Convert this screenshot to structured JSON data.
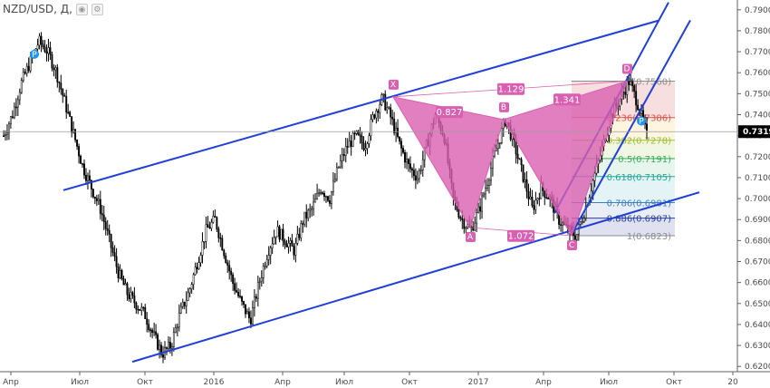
{
  "header": {
    "title": "NZD/USD, Д,",
    "icons": [
      "eye-icon",
      "settings-icon"
    ]
  },
  "chart_data": {
    "type": "candlestick",
    "symbol": "NZD/USD",
    "timeframe": "Д",
    "ylim": [
      0.6175,
      0.7925
    ],
    "yticks": [
      "0.7900",
      "0.7800",
      "0.7700",
      "0.7600",
      "0.7500",
      "0.7400",
      "0.7300",
      "0.7200",
      "0.7100",
      "0.7000",
      "0.6900",
      "0.6800",
      "0.6700",
      "0.6600",
      "0.6500",
      "0.6400",
      "0.6300",
      "0.6200"
    ],
    "xticks": [
      "Апр",
      "Июл",
      "Окт",
      "2016",
      "Апр",
      "Июл",
      "Окт",
      "2017",
      "Апр",
      "Июл",
      "Окт",
      "20"
    ],
    "current_price": "0.7319",
    "price_path": [
      0.73,
      0.74,
      0.755,
      0.765,
      0.775,
      0.77,
      0.76,
      0.745,
      0.73,
      0.715,
      0.705,
      0.695,
      0.68,
      0.665,
      0.655,
      0.65,
      0.645,
      0.635,
      0.626,
      0.63,
      0.645,
      0.655,
      0.67,
      0.685,
      0.69,
      0.675,
      0.66,
      0.65,
      0.642,
      0.66,
      0.675,
      0.685,
      0.68,
      0.675,
      0.69,
      0.695,
      0.705,
      0.7,
      0.715,
      0.725,
      0.73,
      0.725,
      0.74,
      0.748,
      0.738,
      0.725,
      0.715,
      0.71,
      0.725,
      0.74,
      0.73,
      0.7,
      0.69,
      0.685,
      0.695,
      0.71,
      0.725,
      0.738,
      0.725,
      0.71,
      0.695,
      0.705,
      0.7,
      0.69,
      0.685,
      0.6823,
      0.695,
      0.71,
      0.725,
      0.74,
      0.748,
      0.756,
      0.745,
      0.73
    ],
    "harmonic_pattern": {
      "points": [
        {
          "label": "X",
          "price": 0.7485
        },
        {
          "label": "A",
          "price": 0.6862
        },
        {
          "label": "B",
          "price": 0.7377
        },
        {
          "label": "C",
          "price": 0.6823
        },
        {
          "label": "D",
          "price": 0.756
        }
      ],
      "ratios": [
        "0.827",
        "1.072",
        "1.129",
        "1.341"
      ]
    },
    "fib_levels": [
      {
        "label": "0(0.7560)",
        "value": 0.756,
        "color": "#8c8c8c",
        "fill": "#f7d9d9"
      },
      {
        "label": "0.236(0.7386)",
        "value": 0.7386,
        "color": "#d9534f",
        "fill": "#fdf3d9"
      },
      {
        "label": "0.382(0.7278)",
        "value": 0.7278,
        "color": "#9dbd32",
        "fill": "#eef6dd"
      },
      {
        "label": "0.5(0.7191)",
        "value": 0.7191,
        "color": "#3aaa5a",
        "fill": "#e2f5ea"
      },
      {
        "label": "0.618(0.7105)",
        "value": 0.7105,
        "color": "#26a69a",
        "fill": "#dff1f3"
      },
      {
        "label": "0.786(0.6981)",
        "value": 0.6981,
        "color": "#3f7fbf",
        "fill": "#e4ecf7"
      },
      {
        "label": "0.886(0.6907)",
        "value": 0.6907,
        "color": "#2a3f9a",
        "fill": "#d9dcef"
      },
      {
        "label": "1(0.6823)",
        "value": 0.6823,
        "color": "#8c8c8c",
        "fill": ""
      }
    ],
    "markers": [
      {
        "label": "P",
        "color": "#2196f3"
      },
      {
        "label": "P",
        "color": "#2196f3"
      }
    ],
    "grid": false,
    "colors": {
      "pattern": "#d95fb0",
      "channel": "#1f3fd6",
      "candle": "#000000",
      "axis_bg": "#ffffff"
    }
  }
}
